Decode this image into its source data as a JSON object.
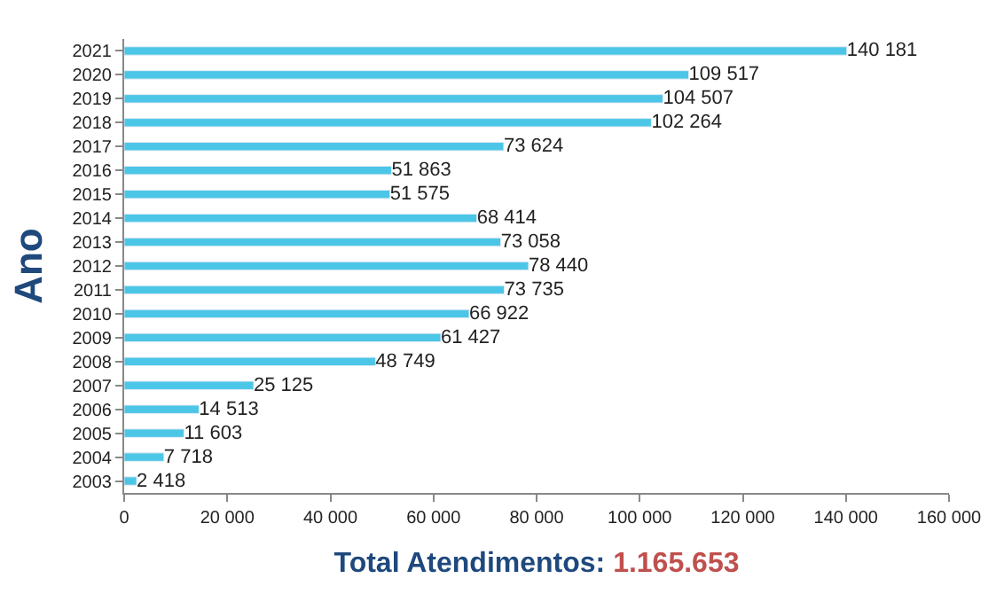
{
  "chart_data": {
    "type": "bar",
    "orientation": "horizontal",
    "ylabel": "Ano",
    "xlabel": "Total Atendimentos:",
    "annotations": [
      "1.165.653"
    ],
    "categories": [
      "2021",
      "2020",
      "2019",
      "2018",
      "2017",
      "2016",
      "2015",
      "2014",
      "2013",
      "2012",
      "2011",
      "2010",
      "2009",
      "2008",
      "2007",
      "2006",
      "2005",
      "2004",
      "2003"
    ],
    "values": [
      140181,
      109517,
      104507,
      102264,
      73624,
      51863,
      51575,
      68414,
      73058,
      78440,
      73735,
      66922,
      61427,
      48749,
      25125,
      14513,
      11603,
      7718,
      2418
    ],
    "value_labels": [
      "140 181",
      "109 517",
      "104 507",
      "102 264",
      "73 624",
      "51 863",
      "51 575",
      "68 414",
      "73 058",
      "78 440",
      "73 735",
      "66 922",
      "61 427",
      "48 749",
      "25 125",
      "14 513",
      "11 603",
      "7 718",
      "2 418"
    ],
    "color": "#4cc6e6",
    "xlim": [
      0,
      160000
    ],
    "xticks": [
      0,
      {
        "value": 20000,
        "label": "20 000"
      },
      {
        "value": 40000,
        "label": "40 000"
      },
      {
        "value": 60000,
        "label": "60 000"
      },
      {
        "value": 80000,
        "label": "80 000"
      },
      {
        "value": 100000,
        "label": "100 000"
      },
      {
        "value": 120000,
        "label": "120 000"
      },
      {
        "value": 140000,
        "label": "140 000"
      },
      {
        "value": 160000,
        "label": "160 000"
      }
    ]
  }
}
